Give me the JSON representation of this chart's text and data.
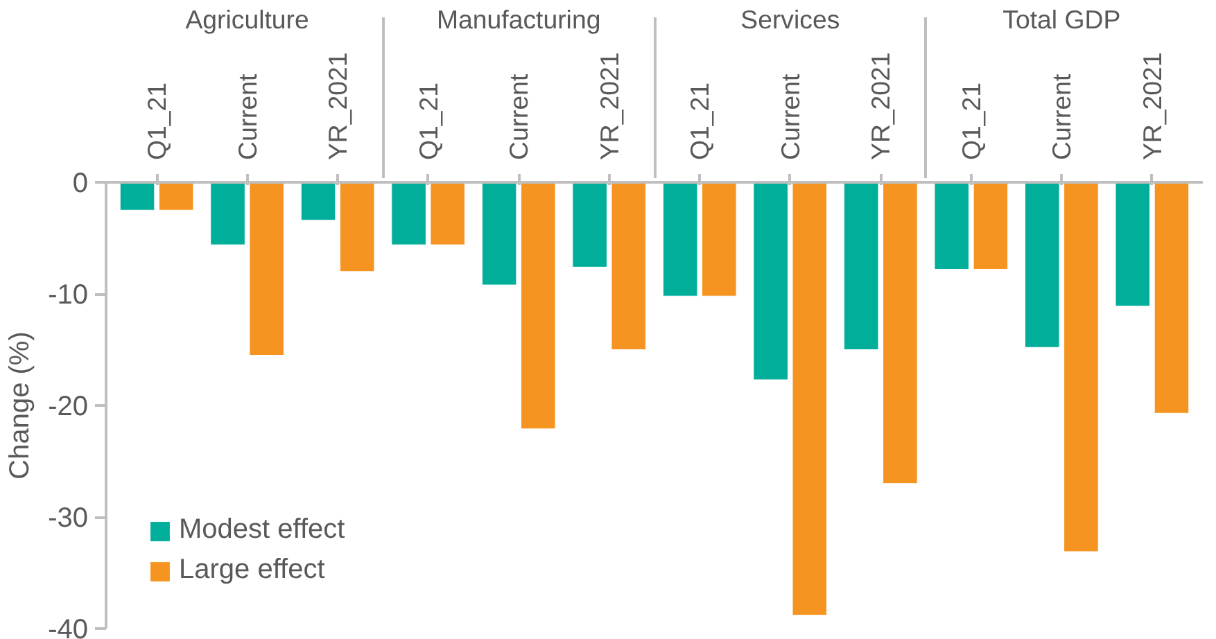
{
  "chart_data": {
    "type": "bar",
    "ylabel": "Change (%)",
    "categories": [
      "Q1_21",
      "Current",
      "YR_2021",
      "Q1_21",
      "Current",
      "YR_2021",
      "Q1_21",
      "Current",
      "YR_2021",
      "Q1_21",
      "Current",
      "YR_2021"
    ],
    "annotations": [
      "Agriculture",
      "Manufacturing",
      "Services",
      "Total GDP"
    ],
    "series": [
      {
        "name": "Modest effect",
        "color": "#00ae9a",
        "values": [
          -2.5,
          -5.6,
          -3.4,
          -5.6,
          -9.2,
          -7.6,
          -10.2,
          -17.7,
          -15.0,
          -7.8,
          -14.8,
          -11.1
        ]
      },
      {
        "name": "Large effect",
        "color": "#f59420",
        "values": [
          -2.5,
          -15.5,
          -8.0,
          -5.6,
          -22.1,
          -15.0,
          -10.2,
          -38.8,
          -27.0,
          -7.8,
          -33.1,
          -20.7
        ]
      }
    ],
    "ylim": [
      -40,
      0
    ],
    "yticks": [
      0,
      -10,
      -20,
      -30,
      -40
    ],
    "grid": false,
    "legend": "bottom left"
  }
}
